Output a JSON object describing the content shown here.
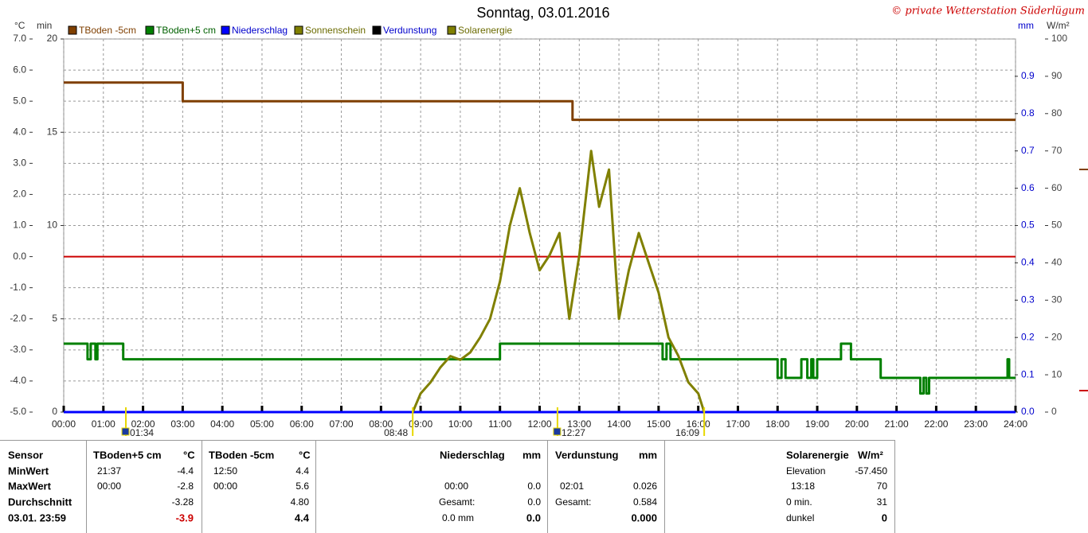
{
  "chart_data": {
    "type": "line",
    "title": "Sonntag, 03.01.2016",
    "copyright": "© private Wetterstation Süderlügum",
    "ylabel": "°C",
    "y2label": "min",
    "y3label": "mm",
    "y4label": "W/m²",
    "xlim": [
      0,
      24
    ],
    "xticks": [
      {
        "value": 0,
        "label": "00:00"
      },
      {
        "value": 1,
        "label": "01:00"
      },
      {
        "value": 2,
        "label": "02:00"
      },
      {
        "value": 3,
        "label": "03:00"
      },
      {
        "value": 4,
        "label": "04:00"
      },
      {
        "value": 5,
        "label": "05:00"
      },
      {
        "value": 6,
        "label": "06:00"
      },
      {
        "value": 7,
        "label": "07:00"
      },
      {
        "value": 8,
        "label": "08:00"
      },
      {
        "value": 9,
        "label": "09:00"
      },
      {
        "value": 10,
        "label": "10:00"
      },
      {
        "value": 11,
        "label": "11:00"
      },
      {
        "value": 12,
        "label": "12:00"
      },
      {
        "value": 13,
        "label": "13:00"
      },
      {
        "value": 14,
        "label": "14:00"
      },
      {
        "value": 15,
        "label": "15:00"
      },
      {
        "value": 16,
        "label": "16:00"
      },
      {
        "value": 17,
        "label": "17:00"
      },
      {
        "value": 18,
        "label": "18:00"
      },
      {
        "value": 19,
        "label": "19:00"
      },
      {
        "value": 20,
        "label": "20:00"
      },
      {
        "value": 21,
        "label": "21:00"
      },
      {
        "value": 22,
        "label": "22:00"
      },
      {
        "value": 23,
        "label": "23:00"
      },
      {
        "value": 24,
        "label": "24:00"
      }
    ],
    "ylim": [
      -5,
      7
    ],
    "yticks": [
      {
        "value": -5,
        "label": "-5.0"
      },
      {
        "value": -4,
        "label": "-4.0"
      },
      {
        "value": -3,
        "label": "-3.0"
      },
      {
        "value": -2,
        "label": "-2.0"
      },
      {
        "value": -1,
        "label": "-1.0"
      },
      {
        "value": 0,
        "label": "0.0"
      },
      {
        "value": 1,
        "label": "1.0"
      },
      {
        "value": 2,
        "label": "2.0"
      },
      {
        "value": 3,
        "label": "3.0"
      },
      {
        "value": 4,
        "label": "4.0"
      },
      {
        "value": 5,
        "label": "5.0"
      },
      {
        "value": 6,
        "label": "6.0"
      },
      {
        "value": 7,
        "label": "7.0"
      }
    ],
    "y2lim": [
      0,
      20
    ],
    "y2ticks": [
      0,
      5,
      10,
      15,
      20
    ],
    "y3lim": [
      0,
      1
    ],
    "y3ticks": [
      {
        "value": 0,
        "label": "0.0"
      },
      0.1,
      0.2,
      0.3,
      0.4,
      0.5,
      0.6,
      0.7,
      0.8,
      0.9
    ],
    "y4lim": [
      0,
      100
    ],
    "y4ticks": [
      0,
      10,
      20,
      30,
      40,
      50,
      60,
      70,
      80,
      90,
      100
    ],
    "grid": true,
    "zero_line_color": "#cc0000",
    "series": [
      {
        "name": "TBoden -5cm",
        "color": "#7f3f00",
        "x": [
          0,
          3,
          3,
          12.83,
          12.83,
          24
        ],
        "values": [
          5.6,
          5.6,
          5.0,
          5.0,
          4.4,
          4.4
        ]
      },
      {
        "name": "TBoden+5 cm",
        "color": "#008000",
        "x": [
          0,
          0.6,
          0.6,
          0.68,
          0.68,
          0.8,
          0.8,
          0.85,
          0.85,
          1.5,
          1.5,
          11.0,
          11.0,
          15.1,
          15.1,
          15.2,
          15.2,
          15.3,
          15.3,
          18.0,
          18.0,
          18.1,
          18.1,
          18.2,
          18.2,
          18.6,
          18.6,
          18.75,
          18.75,
          18.85,
          18.85,
          18.9,
          18.9,
          19.0,
          19.0,
          19.6,
          19.6,
          19.85,
          19.85,
          20.6,
          20.6,
          21.6,
          21.6,
          21.68,
          21.68,
          21.75,
          21.75,
          21.82,
          21.82,
          23.8,
          23.8,
          23.84,
          23.84,
          24
        ],
        "values": [
          -2.8,
          -2.8,
          -3.3,
          -3.3,
          -2.8,
          -2.8,
          -3.3,
          -3.3,
          -2.8,
          -2.8,
          -3.3,
          -3.3,
          -2.8,
          -2.8,
          -3.3,
          -3.3,
          -2.8,
          -2.8,
          -3.3,
          -3.3,
          -3.9,
          -3.9,
          -3.3,
          -3.3,
          -3.9,
          -3.9,
          -3.3,
          -3.3,
          -3.9,
          -3.9,
          -3.3,
          -3.3,
          -3.9,
          -3.9,
          -3.3,
          -3.3,
          -2.8,
          -2.8,
          -3.3,
          -3.3,
          -3.9,
          -3.9,
          -4.4,
          -4.4,
          -3.9,
          -3.9,
          -4.4,
          -4.4,
          -3.9,
          -3.9,
          -3.3,
          -3.3,
          -3.9,
          -3.9
        ]
      },
      {
        "name": "Niederschlag",
        "color": "#0000ff",
        "axis": "y3",
        "x": [
          0,
          24
        ],
        "values": [
          0,
          0
        ]
      },
      {
        "name": "Sonnenschein",
        "color": "#808000"
      },
      {
        "name": "Verdunstung",
        "color": "#000000"
      },
      {
        "name": "Solarenergie",
        "color": "#808000",
        "axis": "y4",
        "x": [
          8.8,
          9.0,
          9.25,
          9.5,
          9.75,
          10.0,
          10.25,
          10.5,
          10.75,
          11.0,
          11.25,
          11.5,
          11.75,
          12.0,
          12.25,
          12.5,
          12.75,
          13.0,
          13.3,
          13.5,
          13.75,
          14.0,
          14.25,
          14.5,
          14.75,
          15.0,
          15.25,
          15.5,
          15.75,
          16.0,
          16.15
        ],
        "values": [
          0,
          5,
          8,
          12,
          15,
          14,
          16,
          20,
          25,
          35,
          50,
          60,
          48,
          38,
          42,
          48,
          25,
          42,
          70,
          55,
          65,
          25,
          38,
          48,
          40,
          32,
          20,
          15,
          8,
          5,
          0
        ]
      }
    ],
    "annotations": [
      {
        "x": 1.567,
        "label": "01:34"
      },
      {
        "x": 8.8,
        "label": "08:48"
      },
      {
        "x": 12.45,
        "label": "12:27"
      },
      {
        "x": 16.15,
        "label": "16:09"
      }
    ]
  },
  "table": {
    "labels": [
      "Sensor",
      "MinWert",
      "MaxWert",
      "Durchschnitt",
      "03.01. 23:59"
    ],
    "tboden5": {
      "header": "TBoden+5 cm",
      "unit": "°C",
      "min_time": "21:37",
      "min": "-4.4",
      "max_time": "00:00",
      "max": "-2.8",
      "avg": "-3.28",
      "current": "-3.9"
    },
    "tboden_5": {
      "header": "TBoden -5cm",
      "unit": "°C",
      "min_time": "12:50",
      "min": "4.4",
      "max_time": "00:00",
      "max": "5.6",
      "avg": "4.80",
      "current": "4.4"
    },
    "niederschlag": {
      "header": "Niederschlag",
      "unit": "mm",
      "max_time": "00:00",
      "max": "0.0",
      "total_label": "Gesamt:",
      "total": "0.0",
      "current_label": "0.0 mm",
      "current": "0.0"
    },
    "verdunstung": {
      "header": "Verdunstung",
      "unit": "mm",
      "max_time": "02:01",
      "max": "0.026",
      "total_label": "Gesamt:",
      "total": "0.584",
      "current": "0.000"
    },
    "solar": {
      "header": "Solarenergie",
      "unit": "W/m²",
      "elevation_label": "Elevation",
      "elevation": "-57.450",
      "max_time": "13:18",
      "max": "70",
      "duration_label": "0 min.",
      "duration": "31",
      "state_label": "dunkel",
      "state": "0"
    }
  }
}
